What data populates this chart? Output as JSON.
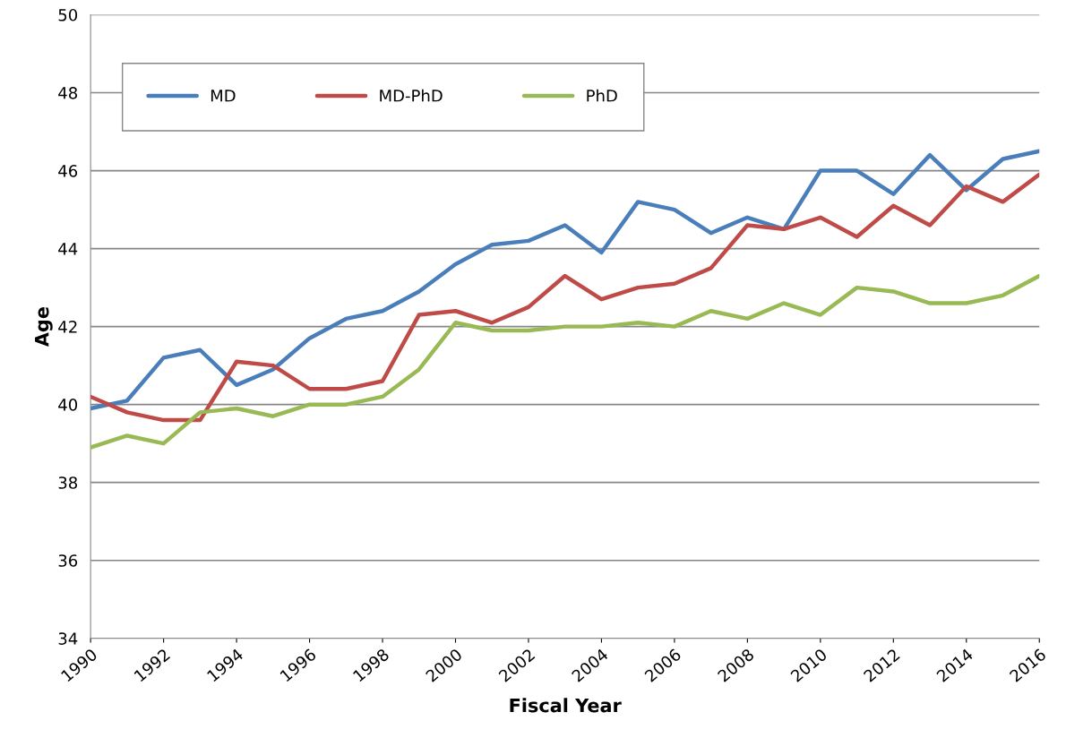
{
  "chart_data": {
    "type": "line",
    "xlabel": "Fiscal Year",
    "ylabel": "Age",
    "x": [
      1990,
      1991,
      1992,
      1993,
      1994,
      1995,
      1996,
      1997,
      1998,
      1999,
      2000,
      2001,
      2002,
      2003,
      2004,
      2005,
      2006,
      2007,
      2008,
      2009,
      2010,
      2011,
      2012,
      2013,
      2014,
      2015,
      2016
    ],
    "series": [
      {
        "name": "MD",
        "color": "#4a7ebb",
        "values": [
          39.9,
          40.1,
          41.2,
          41.4,
          40.5,
          40.9,
          41.7,
          42.2,
          42.4,
          42.9,
          43.6,
          44.1,
          44.2,
          44.6,
          43.9,
          45.2,
          45.0,
          44.4,
          44.8,
          44.5,
          46.0,
          46.0,
          45.4,
          46.4,
          45.5,
          46.3,
          46.5
        ]
      },
      {
        "name": "MD-PhD",
        "color": "#be4b48",
        "values": [
          40.2,
          39.8,
          39.6,
          39.6,
          41.1,
          41.0,
          40.4,
          40.4,
          40.6,
          42.3,
          42.4,
          42.1,
          42.5,
          43.3,
          42.7,
          43.0,
          43.1,
          43.5,
          44.6,
          44.5,
          44.8,
          44.3,
          45.1,
          44.6,
          45.6,
          45.2,
          45.9
        ]
      },
      {
        "name": "PhD",
        "color": "#98b954",
        "values": [
          38.9,
          39.2,
          39.0,
          39.8,
          39.9,
          39.7,
          40.0,
          40.0,
          40.2,
          40.9,
          42.1,
          41.9,
          41.9,
          42.0,
          42.0,
          42.1,
          42.0,
          42.4,
          42.2,
          42.6,
          42.3,
          43.0,
          42.9,
          42.6,
          42.6,
          42.8,
          43.3
        ]
      }
    ],
    "xlim": [
      1990,
      2016
    ],
    "xticks": [
      1990,
      1992,
      1994,
      1996,
      1998,
      2000,
      2002,
      2004,
      2006,
      2008,
      2010,
      2012,
      2014,
      2016
    ],
    "ylim": [
      34,
      50
    ],
    "yticks": [
      34,
      36,
      38,
      40,
      42,
      44,
      46,
      48,
      50
    ],
    "grid": "y",
    "legend": "top left",
    "marker": "none",
    "line_style": "solid"
  }
}
